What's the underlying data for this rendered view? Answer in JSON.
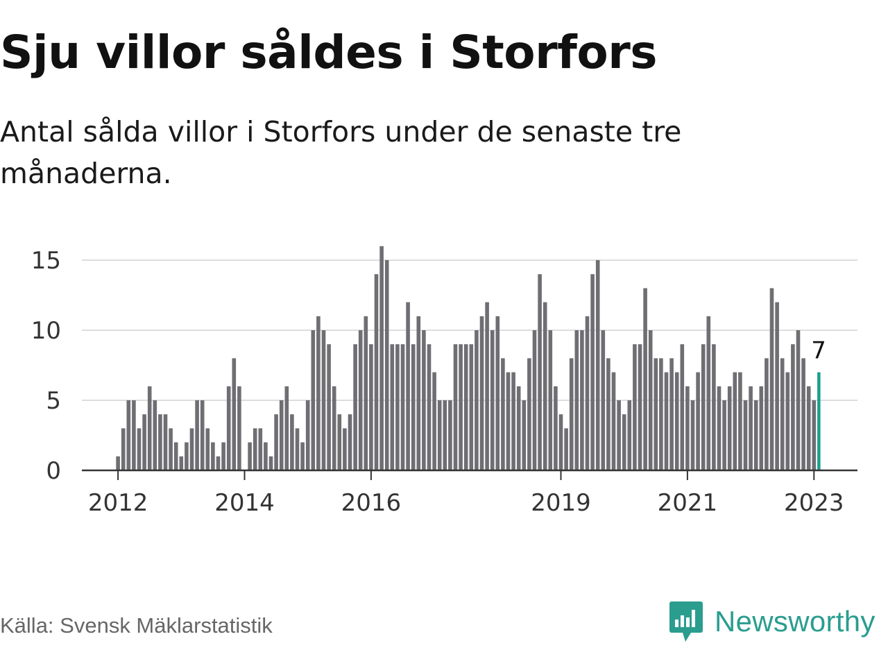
{
  "title": "Sju villor såldes i Storfors",
  "subtitle": "Antal sålda villor i Storfors under de senaste tre månaderna.",
  "source": "Källa: Svensk Mäklarstatistik",
  "brand": "Newsworthy",
  "colors": {
    "bar": "#6e6e73",
    "highlight": "#1a9e8f",
    "grid": "#dddddd",
    "axis": "#333333",
    "brand": "#2a9d8f"
  },
  "chart_data": {
    "type": "bar",
    "title": "",
    "xlabel": "",
    "ylabel": "",
    "ylim": [
      0,
      16
    ],
    "yticks": [
      0,
      5,
      10,
      15
    ],
    "grid": true,
    "x_tick_labels": [
      {
        "label": "2012",
        "at": "2012-01"
      },
      {
        "label": "2014",
        "at": "2014-01"
      },
      {
        "label": "2016",
        "at": "2016-01"
      },
      {
        "label": "2019",
        "at": "2019-01"
      },
      {
        "label": "2021",
        "at": "2021-01"
      },
      {
        "label": "2023",
        "at": "2023-01"
      }
    ],
    "series": [
      {
        "start": "2011-10",
        "end": "2023-02",
        "values": [
          0,
          0,
          0,
          1,
          3,
          5,
          5,
          3,
          4,
          6,
          5,
          4,
          4,
          3,
          2,
          1,
          2,
          3,
          5,
          5,
          3,
          2,
          1,
          2,
          6,
          8,
          6,
          0,
          2,
          3,
          3,
          2,
          1,
          4,
          5,
          6,
          4,
          3,
          2,
          5,
          10,
          11,
          10,
          9,
          6,
          4,
          3,
          4,
          9,
          10,
          11,
          9,
          14,
          16,
          15,
          9,
          9,
          9,
          12,
          9,
          11,
          10,
          9,
          7,
          5,
          5,
          5,
          9,
          9,
          9,
          9,
          10,
          11,
          12,
          10,
          11,
          8,
          7,
          7,
          6,
          5,
          8,
          10,
          14,
          12,
          10,
          6,
          4,
          3,
          8,
          10,
          10,
          11,
          14,
          15,
          10,
          8,
          7,
          5,
          4,
          5,
          9,
          9,
          13,
          10,
          8,
          8,
          7,
          8,
          7,
          9,
          6,
          5,
          7,
          9,
          11,
          9,
          6,
          5,
          6,
          7,
          7,
          5,
          6,
          5,
          6,
          8,
          13,
          12,
          8,
          7,
          9,
          10,
          8,
          6,
          5,
          7
        ]
      }
    ],
    "highlight": {
      "index": 136,
      "label": "7"
    }
  }
}
